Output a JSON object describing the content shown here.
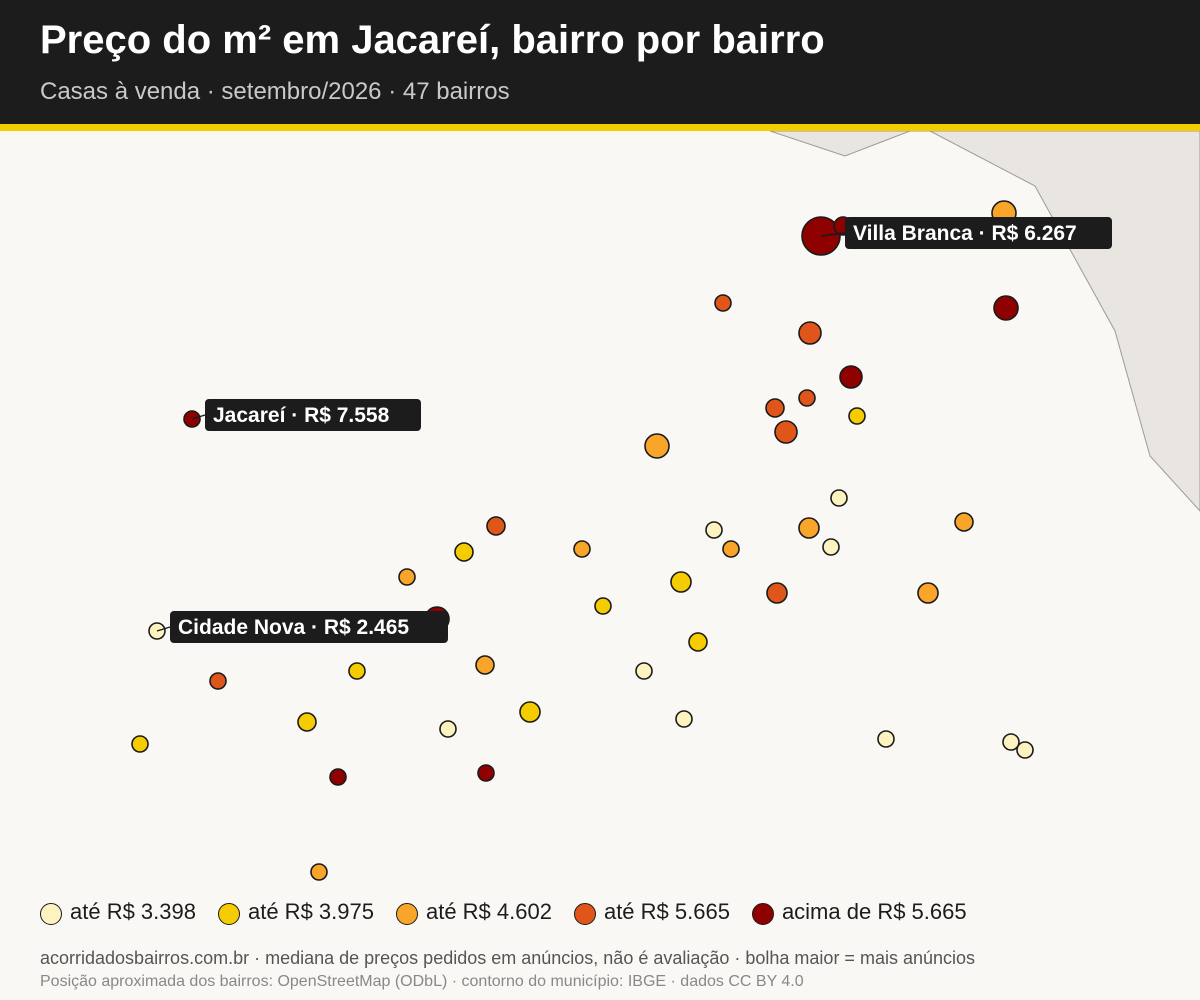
{
  "header": {
    "title": "Preço do m² em Jacareí, bairro por bairro",
    "subtitle": "Casas à venda · setembro/2026 · 47 bairros"
  },
  "colors": {
    "tier1": "#fdf3c0",
    "tier2": "#f5cc00",
    "tier3": "#f9a52a",
    "tier4": "#e0561a",
    "tier5": "#8f0000",
    "land_outline": "#e9e6e1",
    "header_bg": "#1c1c1c",
    "accent": "#f5cc00"
  },
  "legend": [
    {
      "label": "até R$ 3.398",
      "tier": 1
    },
    {
      "label": "até R$ 3.975",
      "tier": 2
    },
    {
      "label": "até R$ 4.602",
      "tier": 3
    },
    {
      "label": "até R$ 5.665",
      "tier": 4
    },
    {
      "label": "acima de R$ 5.665",
      "tier": 5
    }
  ],
  "labels": [
    {
      "text": "Villa Branca · R$ 6.267"
    },
    {
      "text": "Jacareí · R$ 7.558"
    },
    {
      "text": "Cidade Nova · R$ 2.465"
    }
  ],
  "footer": {
    "source": "acorridadosbairros.com.br · mediana de preços pedidos em anúncios, não é avaliação · bolha maior = mais anúncios",
    "credits": "Posição aproximada dos bairros: OpenStreetMap (ODbL) · contorno do município: IBGE · dados CC BY 4.0"
  }
}
